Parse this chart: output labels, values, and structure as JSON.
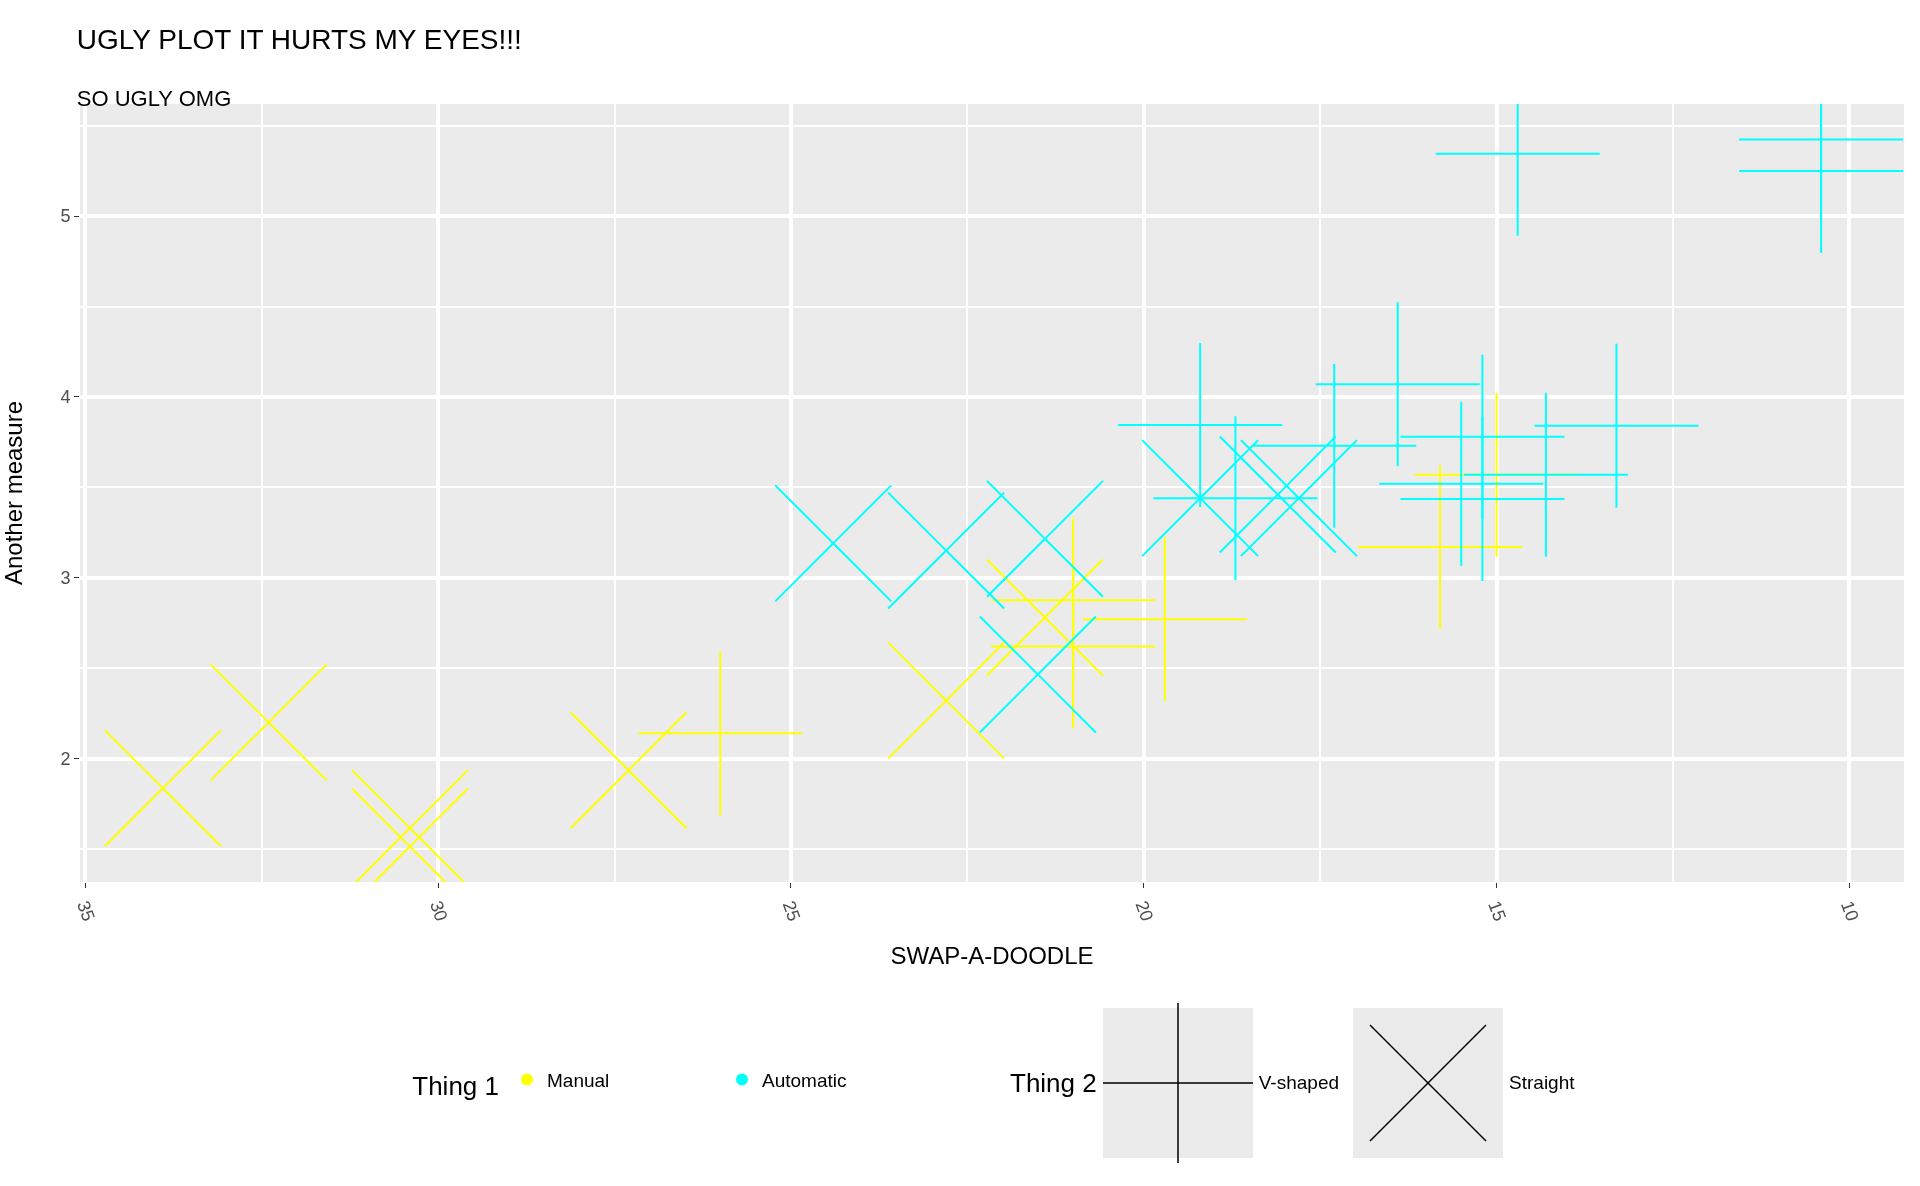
{
  "chart_data": {
    "type": "scatter",
    "title": "UGLY PLOT IT HURTS MY EYES!!!",
    "subtitle": "SO UGLY OMG",
    "xlabel": "SWAP-A-DOODLE",
    "ylabel": "Another measure",
    "xlim": [
      35.075,
      9.225
    ],
    "xticks": [
      35,
      30,
      25,
      20,
      15,
      10
    ],
    "ylim": [
      1.317,
      5.62
    ],
    "yticks": [
      2,
      3,
      4,
      5
    ],
    "grid": true,
    "legend": "bottom",
    "legend_title": "Thing 1",
    "annotations": [
      "Thing 2",
      "V-shaped",
      "Straight"
    ],
    "series": [
      {
        "name": "Manual",
        "color": "#ffff00",
        "marker": "cross",
        "x": [
          21.0,
          21.0,
          26.0,
          15.8,
          19.7,
          15.0
        ],
        "values": [
          2.62,
          2.875,
          2.14,
          3.17,
          2.77,
          3.57
        ]
      },
      {
        "color": "#ffff00",
        "x": [
          22.8,
          32.4,
          30.4,
          33.9,
          27.3,
          30.4,
          21.4
        ],
        "values": [
          2.32,
          2.2,
          1.615,
          1.835,
          1.935,
          1.513,
          2.78
        ]
      },
      {
        "name": "Automatic",
        "color": "#00ffff",
        "marker": "cross",
        "x": [
          18.7,
          14.3,
          16.4,
          17.3,
          15.2,
          10.4,
          10.4,
          14.7,
          15.5,
          15.2,
          13.3,
          19.2
        ],
        "values": [
          3.44,
          3.57,
          4.07,
          3.73,
          3.78,
          5.25,
          5.424,
          5.345,
          3.52,
          3.435,
          3.84,
          3.845
        ]
      },
      {
        "color": "#00ffff",
        "x": [
          21.4,
          18.1,
          24.4,
          22.8,
          19.2,
          17.8,
          21.5
        ],
        "values": [
          3.215,
          3.46,
          3.19,
          3.15,
          3.44,
          3.44,
          2.465
        ]
      }
    ]
  }
}
